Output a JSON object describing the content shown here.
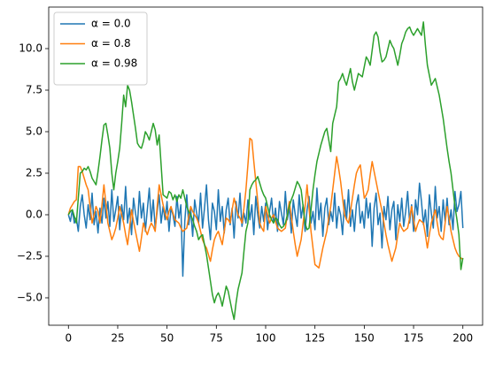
{
  "chart_data": {
    "type": "line",
    "x": [
      0,
      1,
      2,
      3,
      4,
      5,
      6,
      7,
      8,
      9,
      10,
      11,
      12,
      13,
      14,
      15,
      16,
      17,
      18,
      19,
      20,
      21,
      22,
      23,
      24,
      25,
      26,
      27,
      28,
      29,
      30,
      31,
      32,
      33,
      34,
      35,
      36,
      37,
      38,
      39,
      40,
      41,
      42,
      43,
      44,
      45,
      46,
      47,
      48,
      49,
      50,
      51,
      52,
      53,
      54,
      55,
      56,
      57,
      58,
      59,
      60,
      61,
      62,
      63,
      64,
      65,
      66,
      67,
      68,
      69,
      70,
      71,
      72,
      73,
      74,
      75,
      76,
      77,
      78,
      79,
      80,
      81,
      82,
      83,
      84,
      85,
      86,
      87,
      88,
      89,
      90,
      91,
      92,
      93,
      94,
      95,
      96,
      97,
      98,
      99,
      100,
      101,
      102,
      103,
      104,
      105,
      106,
      107,
      108,
      109,
      110,
      111,
      112,
      113,
      114,
      115,
      116,
      117,
      118,
      119,
      120,
      121,
      122,
      123,
      124,
      125,
      126,
      127,
      128,
      129,
      130,
      131,
      132,
      133,
      134,
      135,
      136,
      137,
      138,
      139,
      140,
      141,
      142,
      143,
      144,
      145,
      146,
      147,
      148,
      149,
      150,
      151,
      152,
      153,
      154,
      155,
      156,
      157,
      158,
      159,
      160,
      161,
      162,
      163,
      164,
      165,
      166,
      167,
      168,
      169,
      170,
      171,
      172,
      173,
      174,
      175,
      176,
      177,
      178,
      179,
      180,
      181,
      182,
      183,
      184,
      185,
      186,
      187,
      188,
      189,
      190,
      191,
      192,
      193,
      194,
      195,
      196,
      197,
      198,
      199,
      200
    ],
    "series": [
      {
        "name": "α = 0.0",
        "color": "#1f77b4",
        "values": [
          0.0,
          -0.4,
          0.3,
          -0.5,
          -0.2,
          -1.0,
          0.5,
          1.2,
          0.0,
          -0.8,
          0.6,
          -0.3,
          1.3,
          -0.6,
          0.2,
          -1.1,
          0.4,
          -0.5,
          1.0,
          -0.2,
          0.8,
          -0.7,
          1.5,
          -0.4,
          0.3,
          1.1,
          -0.9,
          0.6,
          -0.3,
          1.7,
          -0.5,
          0.4,
          -1.2,
          1.0,
          0.1,
          -0.6,
          1.4,
          -0.2,
          0.7,
          -1.0,
          0.3,
          1.6,
          -0.4,
          0.9,
          -0.8,
          0.2,
          1.2,
          -0.5,
          0.5,
          -0.3,
          0.8,
          -1.0,
          0.4,
          0.0,
          -0.7,
          1.1,
          -0.2,
          0.6,
          -3.7,
          -0.4,
          1.2,
          -0.6,
          0.3,
          -1.3,
          0.9,
          0.1,
          -0.5,
          1.3,
          -0.8,
          0.4,
          1.8,
          -0.3,
          -1.5,
          0.7,
          0.2,
          -0.9,
          1.5,
          -0.4,
          0.5,
          -1.1,
          0.3,
          1.0,
          -0.6,
          0.4,
          -1.4,
          0.8,
          -0.2,
          1.3,
          -0.7,
          0.1,
          -0.5,
          0.9,
          -0.3,
          0.6,
          -1.2,
          1.1,
          0.0,
          -0.8,
          0.5,
          -0.4,
          0.7,
          -0.9,
          0.2,
          1.0,
          -0.5,
          0.4,
          -1.0,
          0.8,
          0.1,
          -0.6,
          1.4,
          -0.3,
          0.5,
          -1.1,
          0.9,
          0.0,
          -0.7,
          1.2,
          -0.2,
          0.6,
          -1.0,
          0.3,
          1.1,
          -0.5,
          0.2,
          -0.9,
          1.6,
          -0.3,
          0.7,
          -1.3,
          0.4,
          1.0,
          -0.6,
          0.2,
          -0.4,
          1.3,
          -0.8,
          0.5,
          0.0,
          -1.2,
          0.9,
          -0.3,
          1.5,
          -0.7,
          0.3,
          -1.0,
          0.6,
          1.2,
          -0.5,
          0.2,
          -0.8,
          1.0,
          -0.2,
          0.7,
          -1.9,
          0.4,
          1.3,
          -0.6,
          0.1,
          -2.0,
          0.5,
          -0.3,
          1.1,
          -0.9,
          0.3,
          0.8,
          -1.5,
          0.6,
          -0.4,
          1.0,
          -0.7,
          0.2,
          1.4,
          -0.5,
          0.6,
          -1.0,
          0.9,
          0.0,
          1.9,
          0.8,
          -0.6,
          0.3,
          -1.3,
          1.2,
          0.1,
          -0.8,
          1.7,
          -0.2,
          0.5,
          -1.0,
          0.9,
          -0.4,
          1.0,
          -0.6,
          0.3,
          -0.9,
          1.4,
          0.2,
          0.6,
          1.4,
          -0.8
        ]
      },
      {
        "name": "α = 0.8",
        "color": "#ff7f0e",
        "values": [
          0,
          0.4,
          0.6,
          0.8,
          0.9,
          2.9,
          2.9,
          2.6,
          2.2,
          1.8,
          1.5,
          0.5,
          -0.5,
          0.0,
          0.5,
          0.2,
          -0.5,
          0.6,
          1.8,
          0.7,
          -0.5,
          -1.0,
          -1.5,
          -1.2,
          -0.8,
          -0.2,
          0.5,
          0.0,
          -0.5,
          -1.2,
          -1.8,
          -0.8,
          0.3,
          -0.4,
          -1.0,
          -1.6,
          -2.2,
          -1.4,
          -0.5,
          -0.9,
          -1.2,
          -0.8,
          -0.5,
          -0.7,
          -1.0,
          0.5,
          1.8,
          1.2,
          0.6,
          0.1,
          -0.3,
          0.2,
          0.5,
          0.1,
          -0.3,
          -0.4,
          -0.5,
          -0.8,
          -1.0,
          -0.9,
          -0.8,
          -0.1,
          0.5,
          0.2,
          0.0,
          -0.2,
          -0.5,
          -1.0,
          -1.5,
          -1.8,
          -2.0,
          -2.4,
          -2.8,
          -2.1,
          -1.5,
          -1.2,
          -1.0,
          -1.4,
          -1.8,
          -1.0,
          -0.2,
          -0.3,
          -0.5,
          0.3,
          1.0,
          0.5,
          0.0,
          -0.2,
          -0.5,
          0.4,
          1.5,
          3.0,
          4.6,
          4.5,
          3.2,
          2.0,
          0.8,
          -0.5,
          -0.8,
          -1.0,
          0.5,
          0.0,
          -0.5,
          -0.2,
          0.0,
          -0.4,
          -0.8,
          -0.9,
          -1.0,
          -0.9,
          -0.8,
          0.0,
          0.8,
          -0.1,
          -1.0,
          -1.8,
          -2.5,
          -2.0,
          -1.5,
          -0.5,
          0.5,
          1.8,
          0.4,
          -1.0,
          -2.0,
          -3.0,
          -3.1,
          -3.2,
          -2.6,
          -2.0,
          -1.5,
          -1.0,
          -0.2,
          0.5,
          1.5,
          2.5,
          3.5,
          2.8,
          2.0,
          1.0,
          0.0,
          -0.3,
          -0.5,
          0.2,
          1.0,
          1.8,
          2.5,
          2.8,
          3.0,
          2.0,
          1.0,
          1.2,
          1.5,
          2.4,
          3.2,
          2.6,
          2.0,
          1.4,
          0.8,
          0.2,
          -0.5,
          -1.2,
          -1.8,
          -2.3,
          -2.8,
          -2.4,
          -2.0,
          -1.2,
          -0.5,
          -0.8,
          -1.0,
          -0.9,
          -0.8,
          -0.2,
          0.5,
          -0.3,
          -1.0,
          -0.6,
          -0.3,
          -0.4,
          -0.5,
          -1.2,
          -2.0,
          -1.2,
          -0.5,
          -0.1,
          0.3,
          -0.5,
          -1.2,
          -1.4,
          -1.5,
          -0.5,
          0.5,
          -0.2,
          -1.0,
          -1.5,
          -2.0,
          -2.3,
          -2.5,
          -2.6,
          -2.7
        ]
      },
      {
        "name": "α = 0.98",
        "color": "#2ca02c",
        "values": [
          0,
          0.2,
          0.3,
          -0.1,
          -0.5,
          1.0,
          2.5,
          2.6,
          2.8,
          2.7,
          2.9,
          2.6,
          2.2,
          2.0,
          1.8,
          2.6,
          3.5,
          4.5,
          5.4,
          5.5,
          4.8,
          4.0,
          2.5,
          1.5,
          2.5,
          3.2,
          4.0,
          5.5,
          7.2,
          6.5,
          7.8,
          7.5,
          6.8,
          6.0,
          5.2,
          4.3,
          4.1,
          4.0,
          4.4,
          5.0,
          4.8,
          4.5,
          5.0,
          5.5,
          5.1,
          4.2,
          4.8,
          3.0,
          1.2,
          1.1,
          1.0,
          1.4,
          1.3,
          0.9,
          1.2,
          0.8,
          1.2,
          1.0,
          1.5,
          1.0,
          0.5,
          0.2,
          0.0,
          -0.3,
          -0.7,
          -1.0,
          -1.5,
          -1.3,
          -1.2,
          -1.8,
          -2.4,
          -3.2,
          -4.0,
          -4.8,
          -5.3,
          -4.9,
          -4.7,
          -5.0,
          -5.5,
          -4.9,
          -4.3,
          -4.6,
          -5.2,
          -5.8,
          -6.3,
          -5.3,
          -4.5,
          -4.0,
          -3.5,
          -2.2,
          -1.0,
          -0.5,
          1.5,
          1.8,
          2.0,
          2.1,
          2.3,
          1.9,
          1.5,
          1.2,
          1.0,
          0.5,
          0.0,
          -0.3,
          -0.5,
          -0.2,
          -0.3,
          -0.6,
          -0.8,
          -0.7,
          -0.5,
          0.0,
          0.5,
          0.9,
          1.2,
          1.6,
          2.0,
          1.8,
          1.5,
          0.5,
          -0.5,
          -0.9,
          -0.8,
          0.3,
          1.5,
          2.4,
          3.2,
          3.7,
          4.2,
          4.6,
          5.0,
          5.2,
          4.5,
          3.8,
          5.5,
          6.0,
          6.5,
          8.0,
          8.2,
          8.5,
          8.1,
          7.8,
          8.3,
          8.8,
          8.0,
          7.5,
          8.0,
          8.5,
          8.4,
          8.3,
          8.9,
          9.5,
          9.3,
          9.0,
          9.9,
          10.8,
          11.0,
          10.7,
          9.8,
          9.2,
          9.3,
          9.5,
          10.0,
          10.5,
          10.2,
          10.0,
          9.5,
          9.0,
          9.6,
          10.3,
          10.6,
          11.0,
          11.2,
          11.3,
          11.0,
          10.8,
          11.0,
          11.2,
          11.0,
          10.8,
          11.6,
          10.2,
          9.0,
          8.4,
          7.8,
          8.0,
          8.2,
          7.7,
          7.2,
          6.5,
          5.8,
          4.9,
          4.0,
          3.2,
          2.5,
          1.5,
          0.5,
          -0.3,
          -1.2,
          -3.3,
          -2.6
        ]
      }
    ],
    "xlim": [
      -10,
      210
    ],
    "ylim": [
      -6.65,
      12.5
    ],
    "xticks": [
      0,
      25,
      50,
      75,
      100,
      125,
      150,
      175,
      200
    ],
    "yticks": [
      {
        "value": -5,
        "label": "−5.0"
      },
      {
        "value": -2.5,
        "label": "−2.5"
      },
      {
        "value": 0,
        "label": "0.0"
      },
      {
        "value": 2.5,
        "label": "2.5"
      },
      {
        "value": 5,
        "label": "5.0"
      },
      {
        "value": 7.5,
        "label": "7.5"
      },
      {
        "value": 10,
        "label": "10.0"
      }
    ],
    "grid": false,
    "legend": "upper left"
  }
}
